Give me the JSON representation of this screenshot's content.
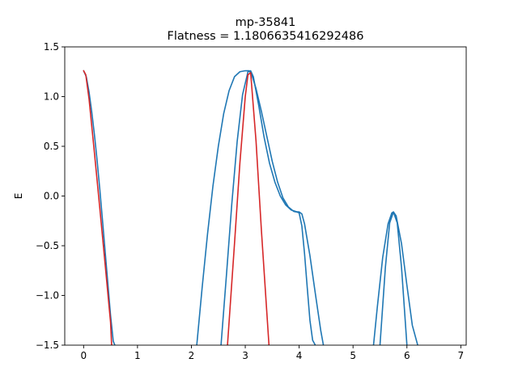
{
  "chart_data": {
    "type": "line",
    "title": "mp-35841",
    "subtitle": "Flatness = 1.1806635416292486",
    "xlabel": "",
    "ylabel": "E",
    "xlim": [
      -0.35,
      7.1
    ],
    "ylim": [
      -1.5,
      1.5
    ],
    "x_ticks": [
      0,
      1,
      2,
      3,
      4,
      5,
      6,
      7
    ],
    "y_ticks": [
      -1.5,
      -1.0,
      -0.5,
      0.0,
      0.5,
      1.0,
      1.5
    ],
    "x_tick_labels": [
      "0",
      "1",
      "2",
      "3",
      "4",
      "5",
      "6",
      "7"
    ],
    "y_tick_labels": [
      "−1.5",
      "−1.0",
      "−0.5",
      "0.0",
      "0.5",
      "1.0",
      "1.5"
    ],
    "grid": false,
    "legend": "none",
    "colors": {
      "blue": "#1f77b4",
      "red": "#d62728"
    },
    "series": [
      {
        "color": "#1f77b4",
        "segments": [
          {
            "x": [
              0,
              0.05,
              0.1,
              0.15,
              0.2,
              0.25,
              0.3,
              0.35,
              0.4,
              0.45,
              0.5,
              0.55,
              0.58
            ],
            "y": [
              1.26,
              1.2,
              1.05,
              0.85,
              0.62,
              0.36,
              0.07,
              -0.24,
              -0.56,
              -0.88,
              -1.2,
              -1.46,
              -1.5
            ]
          },
          {
            "x": [
              2.1,
              2.2,
              2.3,
              2.4,
              2.5,
              2.6,
              2.7,
              2.8,
              2.9,
              3.0,
              3.07,
              3.12,
              3.2,
              3.3,
              3.4,
              3.5,
              3.6,
              3.7,
              3.8,
              3.9,
              3.95,
              4.0,
              4.05,
              4.1,
              4.15,
              4.2,
              4.25,
              4.3
            ],
            "y": [
              -1.5,
              -0.92,
              -0.38,
              0.1,
              0.5,
              0.83,
              1.06,
              1.2,
              1.25,
              1.26,
              1.26,
              1.22,
              1.08,
              0.85,
              0.6,
              0.35,
              0.14,
              -0.02,
              -0.11,
              -0.155,
              -0.16,
              -0.17,
              -0.3,
              -0.58,
              -0.92,
              -1.25,
              -1.45,
              -1.5
            ]
          },
          {
            "x": [
              2.55,
              2.65,
              2.75,
              2.85,
              2.95,
              3.05,
              3.1,
              3.15,
              3.25,
              3.35,
              3.45,
              3.55,
              3.65,
              3.75,
              3.85,
              3.95,
              4.0,
              4.05,
              4.1,
              4.2,
              4.3,
              4.4,
              4.45
            ],
            "y": [
              -1.5,
              -0.8,
              -0.08,
              0.55,
              1.02,
              1.25,
              1.26,
              1.2,
              0.91,
              0.59,
              0.33,
              0.14,
              0.0,
              -0.09,
              -0.14,
              -0.158,
              -0.16,
              -0.18,
              -0.28,
              -0.6,
              -0.98,
              -1.35,
              -1.5
            ]
          },
          {
            "x": [
              5.38,
              5.45,
              5.55,
              5.65,
              5.72,
              5.75,
              5.8,
              5.9,
              6.0,
              6.1,
              6.2
            ],
            "y": [
              -1.5,
              -1.12,
              -0.62,
              -0.28,
              -0.17,
              -0.16,
              -0.2,
              -0.48,
              -0.9,
              -1.3,
              -1.5
            ]
          },
          {
            "x": [
              5.5,
              5.6,
              5.68,
              5.75,
              5.82,
              5.9,
              6.0
            ],
            "y": [
              -1.5,
              -0.72,
              -0.27,
              -0.16,
              -0.27,
              -0.72,
              -1.5
            ]
          }
        ]
      },
      {
        "color": "#d62728",
        "segments": [
          {
            "x": [
              0,
              0.04,
              0.1,
              0.2,
              0.3,
              0.4,
              0.5,
              0.52
            ],
            "y": [
              1.26,
              1.22,
              0.98,
              0.44,
              -0.12,
              -0.69,
              -1.27,
              -1.5
            ]
          },
          {
            "x": [
              2.67,
              2.8,
              2.9,
              3.0,
              3.05,
              3.1,
              3.2,
              3.3,
              3.44
            ],
            "y": [
              -1.5,
              -0.48,
              0.33,
              1.0,
              1.22,
              1.24,
              0.55,
              -0.35,
              -1.5
            ]
          }
        ]
      }
    ]
  }
}
